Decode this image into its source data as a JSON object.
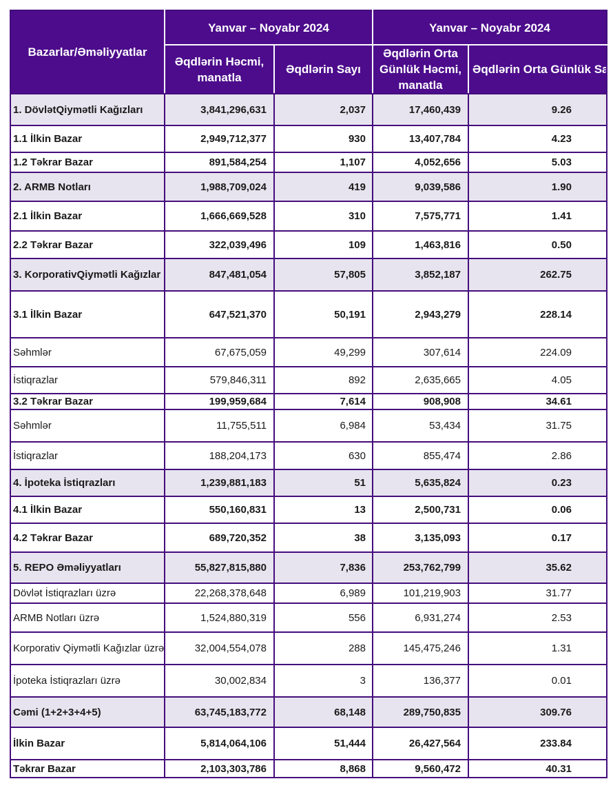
{
  "table": {
    "corner_header": "Bazarlar/Əməliyyatlar",
    "period_headers": [
      "Yanvar – Noyabr 2024",
      "Yanvar – Noyabr 2024"
    ],
    "column_headers": [
      "Əqdlərin Həcmi, manatla",
      "Əqdlərin Sayı",
      "Əqdlərin Orta Günlük Həcmi, manatla",
      "Əqdlərin Orta Günlük Sayı"
    ],
    "rows": [
      {
        "label": "1. DövlətQiymətli Kağızları",
        "volume": "3,841,296,631",
        "count": "2,037",
        "avg_daily_volume": "17,460,439",
        "avg_daily_count": "9.26",
        "emphasis": "section"
      },
      {
        "label": "1.1 İlkin Bazar",
        "volume": "2,949,712,377",
        "count": "930",
        "avg_daily_volume": "13,407,784",
        "avg_daily_count": "4.23",
        "emphasis": "bold"
      },
      {
        "label": "1.2 Təkrar Bazar",
        "volume": "891,584,254",
        "count": "1,107",
        "avg_daily_volume": "4,052,656",
        "avg_daily_count": "5.03",
        "emphasis": "bold"
      },
      {
        "label": "2. ARMB Notları",
        "volume": "1,988,709,024",
        "count": "419",
        "avg_daily_volume": "9,039,586",
        "avg_daily_count": "1.90",
        "emphasis": "section"
      },
      {
        "label": "2.1 İlkin Bazar",
        "volume": "1,666,669,528",
        "count": "310",
        "avg_daily_volume": "7,575,771",
        "avg_daily_count": "1.41",
        "emphasis": "bold"
      },
      {
        "label": "2.2 Təkrar Bazar",
        "volume": "322,039,496",
        "count": "109",
        "avg_daily_volume": "1,463,816",
        "avg_daily_count": "0.50",
        "emphasis": "bold"
      },
      {
        "label": "3. KorporativQiymətli Kağızlar",
        "volume": "847,481,054",
        "count": "57,805",
        "avg_daily_volume": "3,852,187",
        "avg_daily_count": "262.75",
        "emphasis": "section"
      },
      {
        "label": "3.1 İlkin Bazar",
        "volume": "647,521,370",
        "count": "50,191",
        "avg_daily_volume": "2,943,279",
        "avg_daily_count": "228.14",
        "emphasis": "bold"
      },
      {
        "label": "Səhmlər",
        "volume": "67,675,059",
        "count": "49,299",
        "avg_daily_volume": "307,614",
        "avg_daily_count": "224.09",
        "emphasis": "plain"
      },
      {
        "label": "İstiqrazlar",
        "volume": "579,846,311",
        "count": "892",
        "avg_daily_volume": "2,635,665",
        "avg_daily_count": "4.05",
        "emphasis": "plain"
      },
      {
        "label": "3.2 Təkrar Bazar",
        "volume": "199,959,684",
        "count": "7,614",
        "avg_daily_volume": "908,908",
        "avg_daily_count": "34.61",
        "emphasis": "bold"
      },
      {
        "label": "Səhmlər",
        "volume": "11,755,511",
        "count": "6,984",
        "avg_daily_volume": "53,434",
        "avg_daily_count": "31.75",
        "emphasis": "plain"
      },
      {
        "label": "İstiqrazlar",
        "volume": "188,204,173",
        "count": "630",
        "avg_daily_volume": "855,474",
        "avg_daily_count": "2.86",
        "emphasis": "plain"
      },
      {
        "label": "4. İpoteka İstiqrazları",
        "volume": "1,239,881,183",
        "count": "51",
        "avg_daily_volume": "5,635,824",
        "avg_daily_count": "0.23",
        "emphasis": "section"
      },
      {
        "label": "4.1 İlkin Bazar",
        "volume": "550,160,831",
        "count": "13",
        "avg_daily_volume": "2,500,731",
        "avg_daily_count": "0.06",
        "emphasis": "bold"
      },
      {
        "label": "4.2 Təkrar Bazar",
        "volume": "689,720,352",
        "count": "38",
        "avg_daily_volume": "3,135,093",
        "avg_daily_count": "0.17",
        "emphasis": "bold"
      },
      {
        "label": "5. REPO Əməliyyatları",
        "volume": "55,827,815,880",
        "count": "7,836",
        "avg_daily_volume": "253,762,799",
        "avg_daily_count": "35.62",
        "emphasis": "section"
      },
      {
        "label": "Dövlət İstiqrazları üzrə",
        "volume": "22,268,378,648",
        "count": "6,989",
        "avg_daily_volume": "101,219,903",
        "avg_daily_count": "31.77",
        "emphasis": "plain"
      },
      {
        "label": "ARMB Notları üzrə",
        "volume": "1,524,880,319",
        "count": "556",
        "avg_daily_volume": "6,931,274",
        "avg_daily_count": "2.53",
        "emphasis": "plain"
      },
      {
        "label": "Korporativ Qiymətli Kağızlar üzrə",
        "volume": "32,004,554,078",
        "count": "288",
        "avg_daily_volume": "145,475,246",
        "avg_daily_count": "1.31",
        "emphasis": "plain"
      },
      {
        "label": "İpoteka İstiqrazları üzrə",
        "volume": "30,002,834",
        "count": "3",
        "avg_daily_volume": "136,377",
        "avg_daily_count": "0.01",
        "emphasis": "plain"
      },
      {
        "label": "Cəmi (1+2+3+4+5)",
        "volume": "63,745,183,772",
        "count": "68,148",
        "avg_daily_volume": "289,750,835",
        "avg_daily_count": "309.76",
        "emphasis": "section"
      },
      {
        "label": "İlkin Bazar",
        "volume": "5,814,064,106",
        "count": "51,444",
        "avg_daily_volume": "26,427,564",
        "avg_daily_count": "233.84",
        "emphasis": "bold"
      },
      {
        "label": "Təkrar Bazar",
        "volume": "2,103,303,786",
        "count": "8,868",
        "avg_daily_volume": "9,560,472",
        "avg_daily_count": "40.31",
        "emphasis": "bold"
      }
    ]
  },
  "colors": {
    "header_background": "#4C0C8C",
    "header_text": "#FFFFFF",
    "grid_border": "#440D7C",
    "section_row_background": "#E8E4EF",
    "row_background": "#FFFFFF",
    "body_text": "#1A1A1A"
  }
}
